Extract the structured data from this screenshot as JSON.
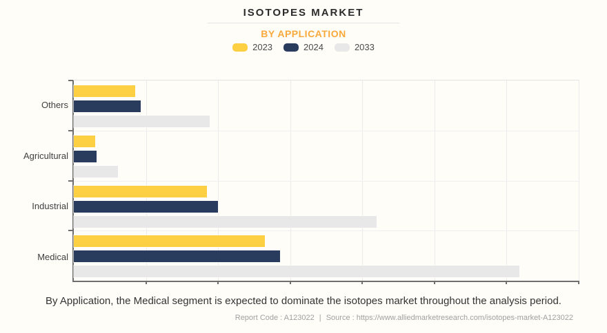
{
  "header": {
    "title": "ISOTOPES MARKET",
    "subtitle": "BY APPLICATION"
  },
  "legend": [
    {
      "label": "2023",
      "color": "#fdd043"
    },
    {
      "label": "2024",
      "color": "#2a3c5e"
    },
    {
      "label": "2033",
      "color": "#e8e8e9"
    }
  ],
  "chart_data": {
    "type": "bar",
    "orientation": "horizontal",
    "title": "ISOTOPES MARKET",
    "subtitle": "BY APPLICATION",
    "categories": [
      "Others",
      "Agricultural",
      "Industrial",
      "Medical"
    ],
    "series": [
      {
        "name": "2023",
        "color": "#fdd043",
        "values": [
          12.2,
          4.2,
          26.4,
          37.8
        ]
      },
      {
        "name": "2024",
        "color": "#2a3c5e",
        "values": [
          13.2,
          4.5,
          28.5,
          40.8
        ]
      },
      {
        "name": "2033",
        "color": "#e8e8e9",
        "values": [
          26.9,
          8.8,
          60.0,
          88.2
        ]
      }
    ],
    "value_note": "axis has no numeric tick labels; values are percent of x-axis length",
    "xlim": [
      0,
      100
    ],
    "x_gridline_count": 7,
    "grid": true,
    "legend_position": "top"
  },
  "footer": {
    "note": "By Application, the Medical segment is expected to dominate the isotopes market throughout the analysis period.",
    "report_code": "Report Code : A123022",
    "separator": "|",
    "source": "Source : https://www.alliedmarketresearch.com/isotopes-market-A123022"
  }
}
